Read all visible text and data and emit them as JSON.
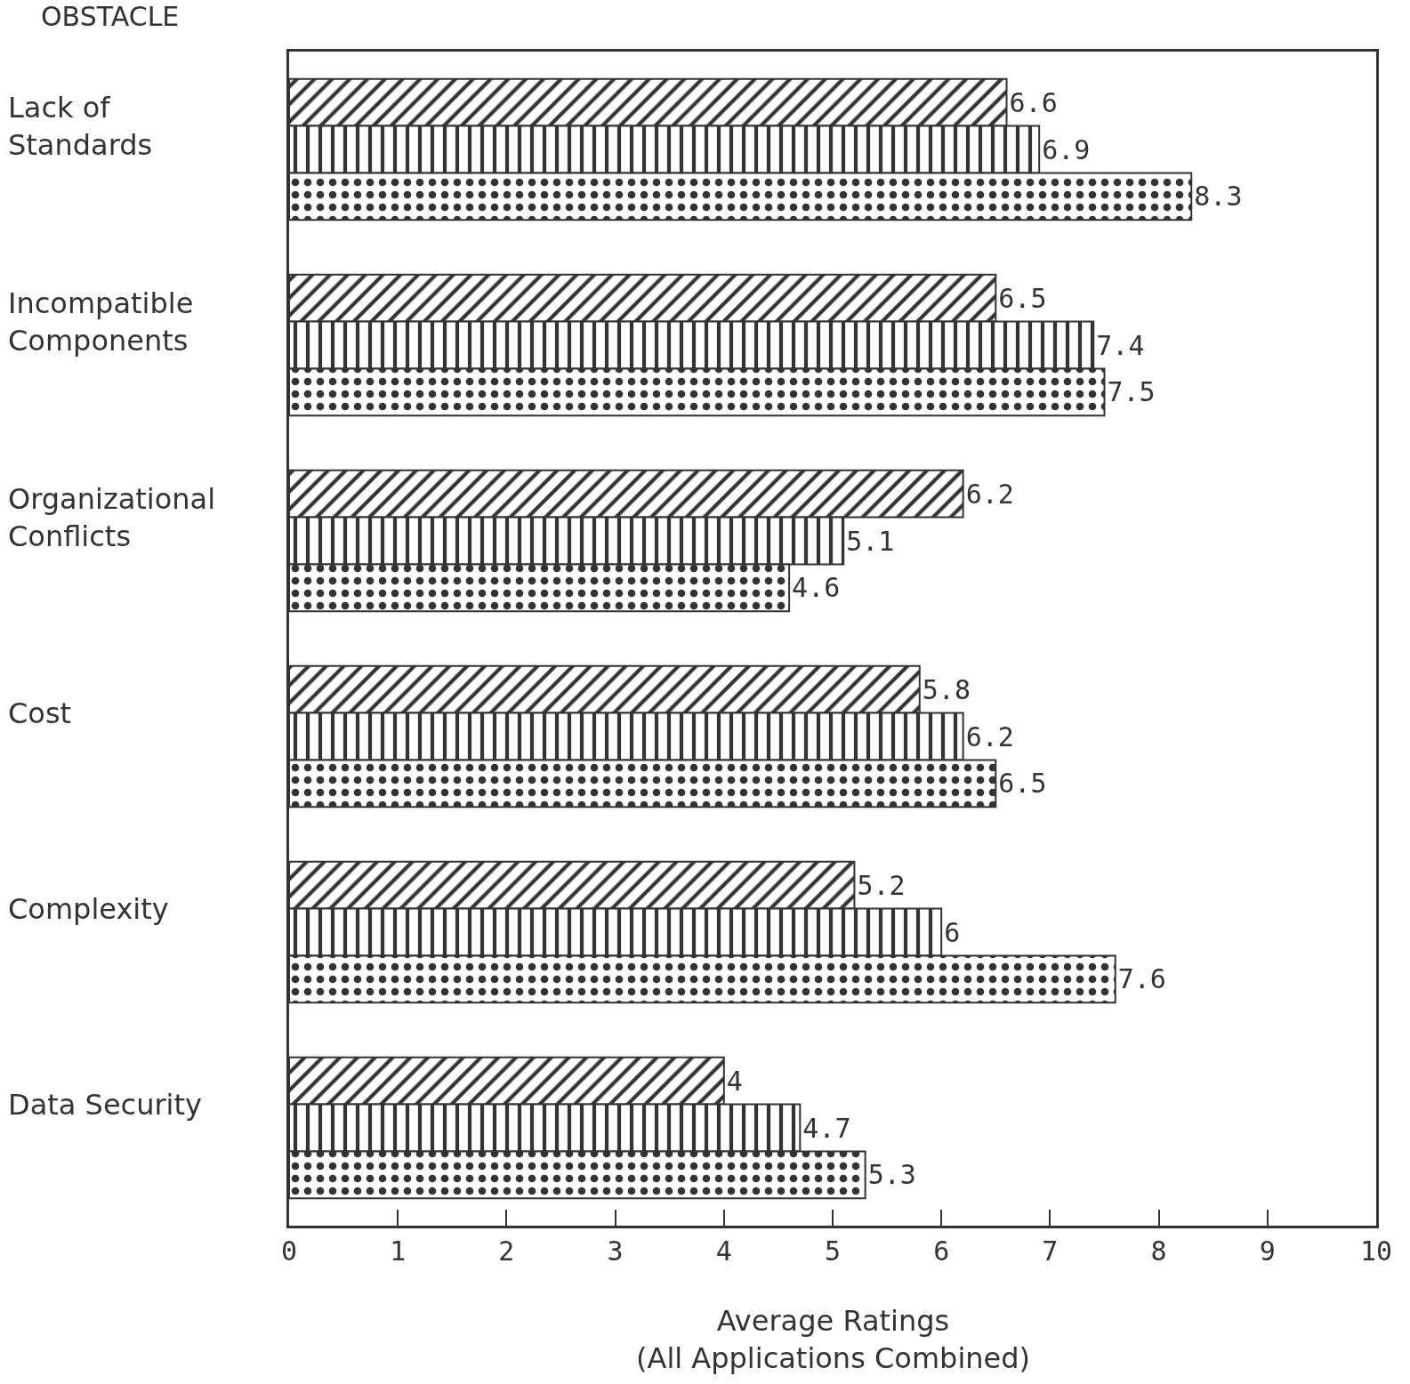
{
  "chart_data": {
    "type": "bar",
    "orientation": "horizontal",
    "ylabel": "OBSTACLE",
    "xlabel": "Average Ratings\n(All Applications Combined)",
    "categories": [
      "Lack of\nStandards",
      "Incompatible\nComponents",
      "Organizational\nConflicts",
      "Cost",
      "Complexity",
      "Data Security"
    ],
    "series": [
      {
        "color": "#333333",
        "values": [
          6.6,
          6.5,
          6.2,
          5.8,
          5.2,
          4
        ]
      },
      {
        "color": "#333333",
        "values": [
          6.9,
          7.4,
          5.1,
          6.2,
          6,
          4.7
        ]
      },
      {
        "color": "#333333",
        "values": [
          8.3,
          7.5,
          4.6,
          6.5,
          7.6,
          5.3
        ]
      }
    ],
    "xlim": [
      0,
      10
    ],
    "xticks": [
      0,
      1,
      2,
      3,
      4,
      5,
      6,
      7,
      8,
      9,
      10
    ],
    "data_labels": true
  }
}
